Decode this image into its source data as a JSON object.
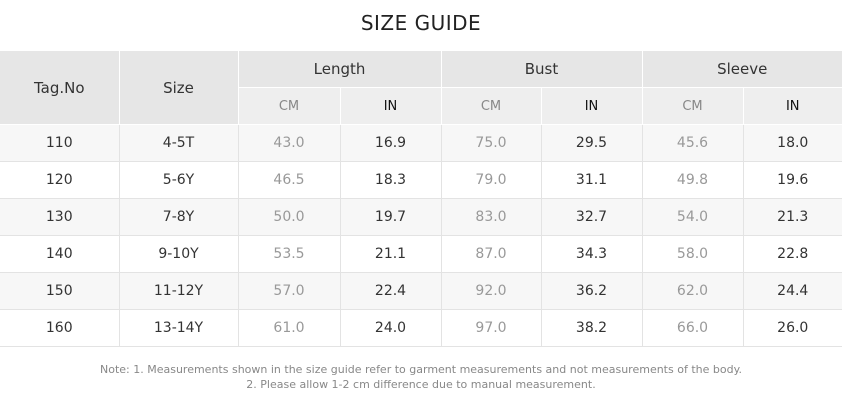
{
  "title": "SIZE GUIDE",
  "headers": {
    "tag": "Tag.No",
    "size": "Size",
    "groups": [
      "Length",
      "Bust",
      "Sleeve"
    ],
    "cm": "CM",
    "in": "IN"
  },
  "rows": [
    [
      "110",
      "4-5T",
      "43.0",
      "16.9",
      "75.0",
      "29.5",
      "45.6",
      "18.0"
    ],
    [
      "120",
      "5-6Y",
      "46.5",
      "18.3",
      "79.0",
      "31.1",
      "49.8",
      "19.6"
    ],
    [
      "130",
      "7-8Y",
      "50.0",
      "19.7",
      "83.0",
      "32.7",
      "54.0",
      "21.3"
    ],
    [
      "140",
      "9-10Y",
      "53.5",
      "21.1",
      "87.0",
      "34.3",
      "58.0",
      "22.8"
    ],
    [
      "150",
      "11-12Y",
      "57.0",
      "22.4",
      "92.0",
      "36.2",
      "62.0",
      "24.4"
    ],
    [
      "160",
      "13-14Y",
      "61.0",
      "24.0",
      "97.0",
      "38.2",
      "66.0",
      "26.0"
    ]
  ],
  "note": {
    "line1": "Note:  1. Measurements shown in the size guide refer to garment measurements and not measurements of the body.",
    "line2": "2. Please allow 1-2 cm difference due to manual measurement."
  }
}
